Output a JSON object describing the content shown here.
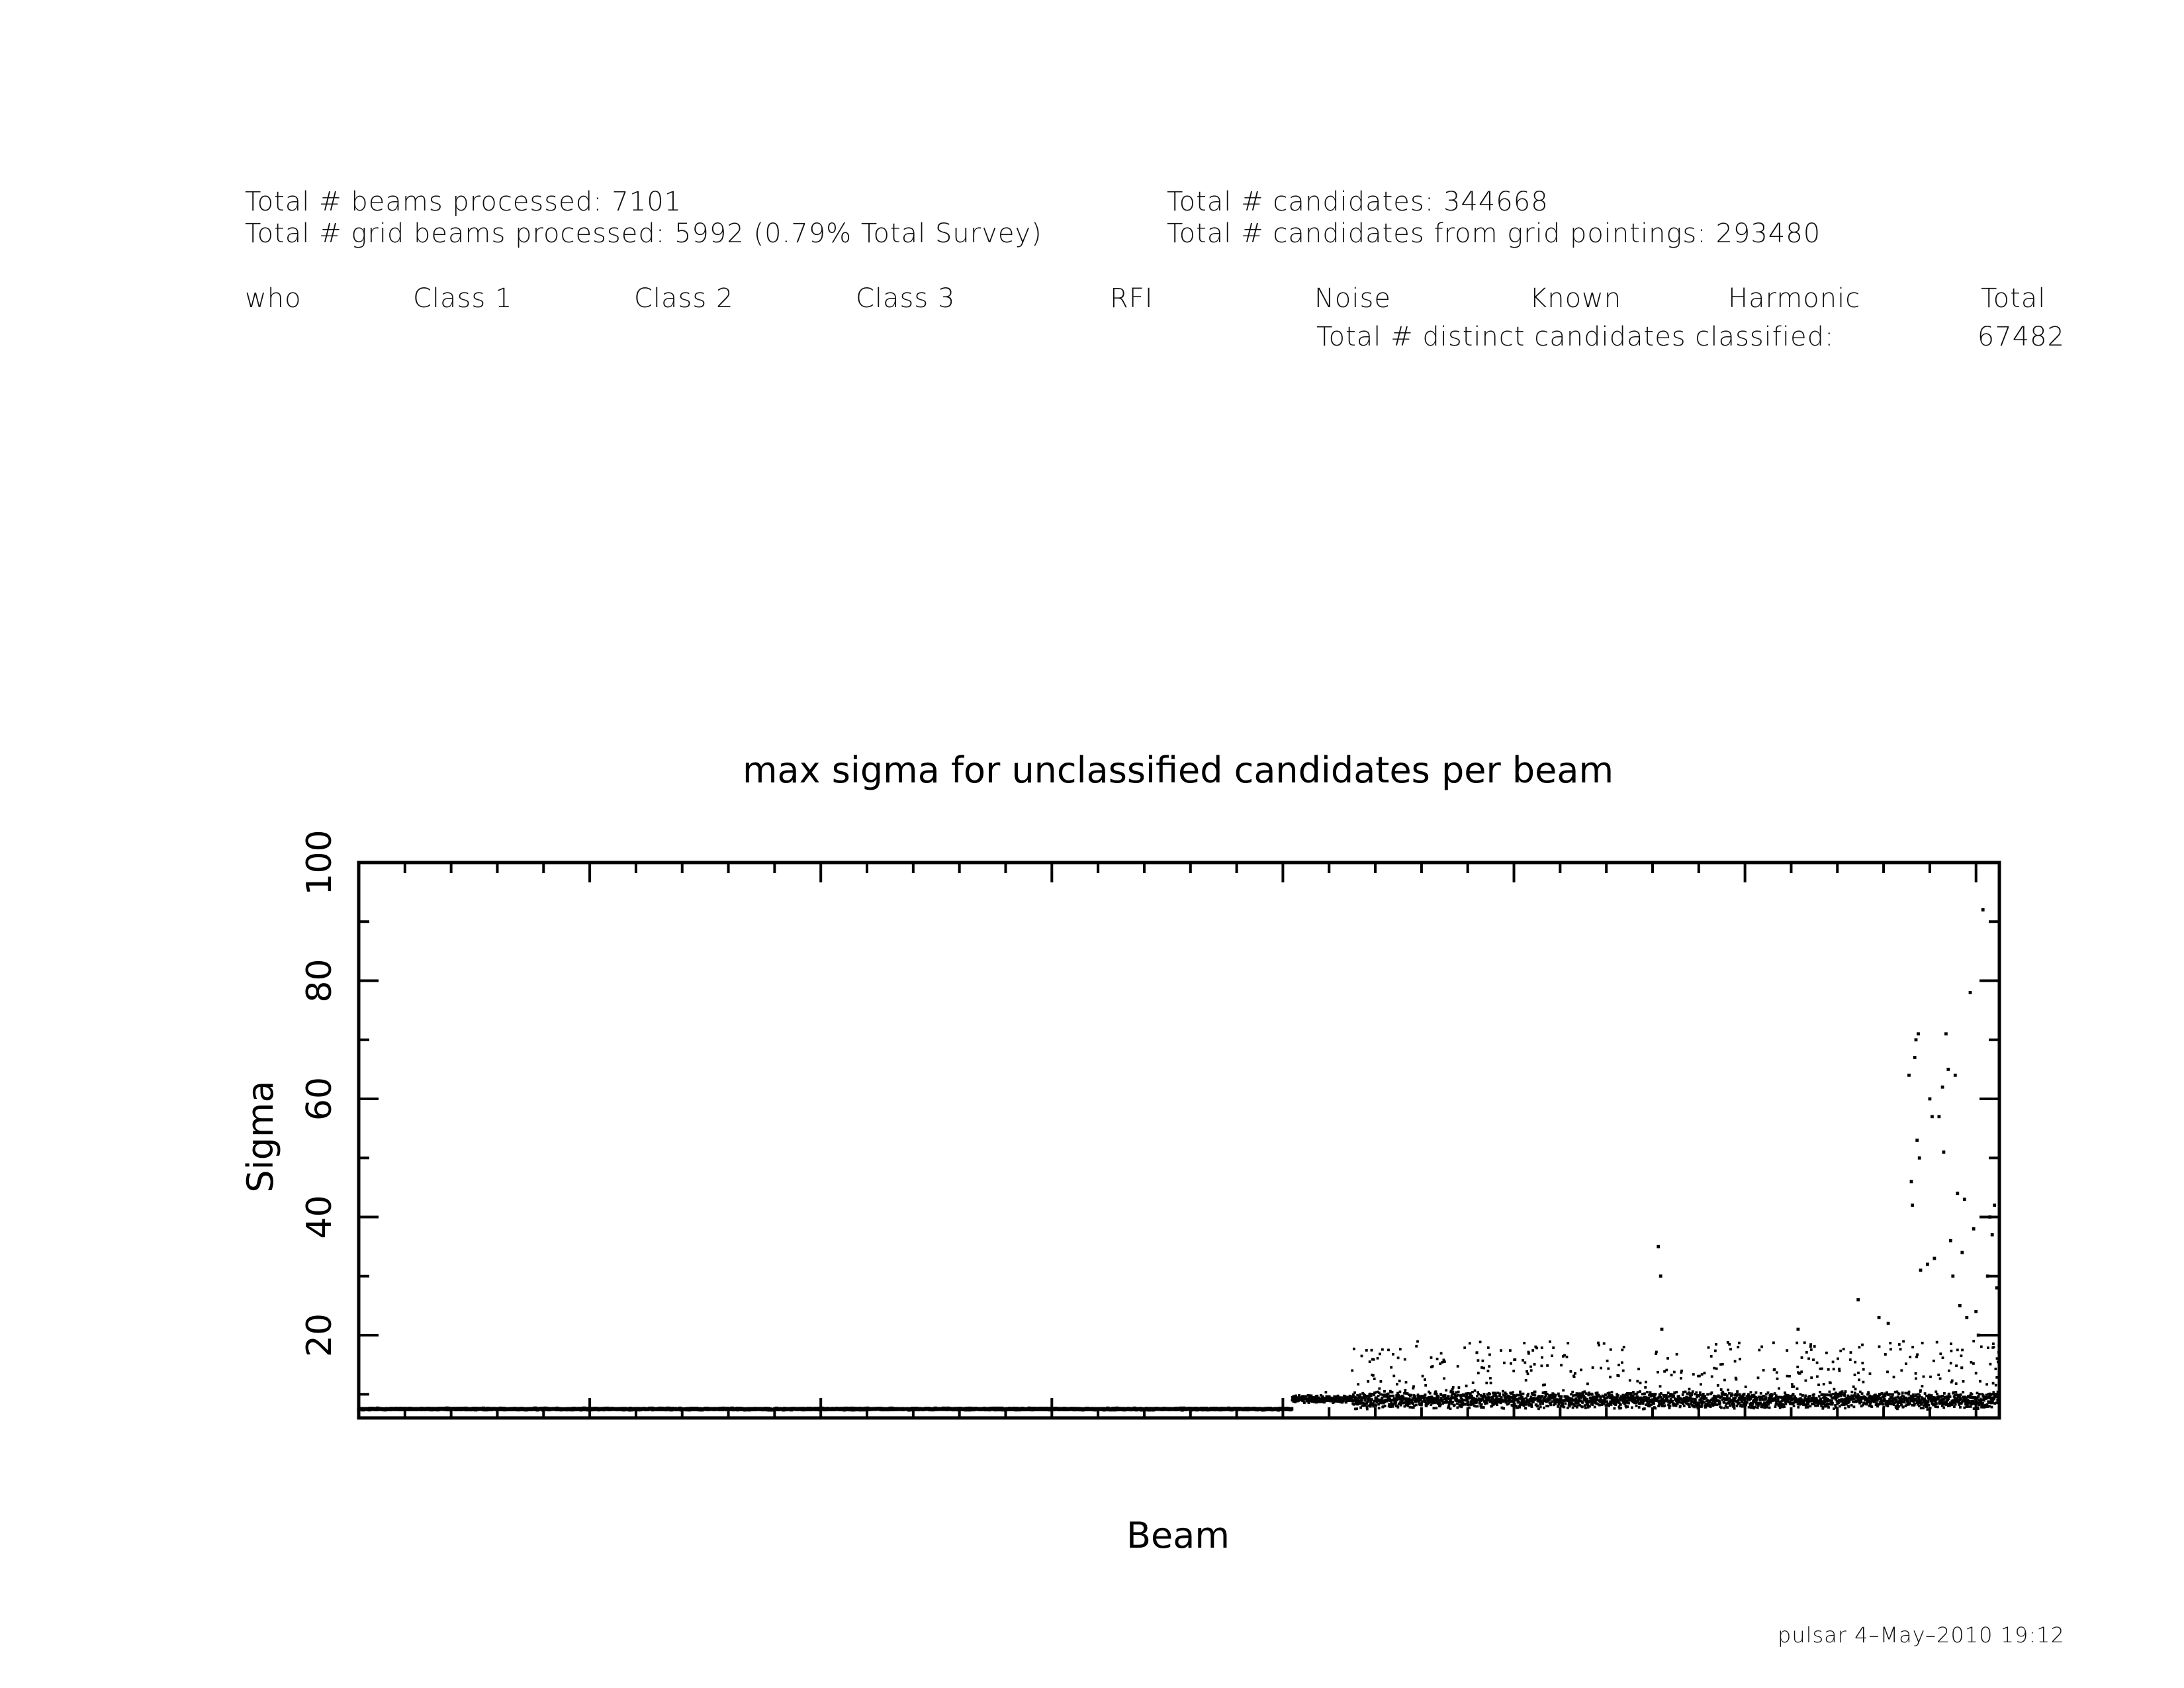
{
  "summary": {
    "beams_processed": "Total # beams processed: 7101",
    "grid_beams_processed": "Total # grid beams processed: 5992 (0.79% Total Survey)",
    "candidates": "Total # candidates: 344668",
    "candidates_grid": "Total # candidates from grid pointings: 293480"
  },
  "classification_table": {
    "headers": [
      "who",
      "Class 1",
      "Class 2",
      "Class 3",
      "RFI",
      "Noise",
      "Known",
      "Harmonic",
      "Total"
    ],
    "distinct_label": "Total # distinct candidates classified:",
    "distinct_value": "67482"
  },
  "chart_data": {
    "type": "scatter",
    "title": "max sigma for unclassified candidates per beam",
    "xlabel": "Beam",
    "ylabel": "Sigma",
    "xlim": [
      0,
      7101
    ],
    "ylim": [
      6,
      100
    ],
    "yticks": [
      20,
      40,
      60,
      80,
      100
    ],
    "x_tick_labels_shown": false,
    "segments": [
      {
        "x_range": [
          0,
          4040
        ],
        "baseline": 7.5,
        "jitter": 0.15,
        "spread_fraction": 0.0,
        "spread_max": 7.8
      },
      {
        "x_range": [
          4040,
          4300
        ],
        "baseline": 9.2,
        "jitter": 0.7,
        "spread_fraction": 0.02,
        "spread_max": 11
      },
      {
        "x_range": [
          4300,
          7101
        ],
        "baseline": 9.0,
        "jitter": 1.6,
        "spread_fraction": 0.12,
        "spread_max": 19
      }
    ],
    "outliers": [
      {
        "x": 5625,
        "y": 35
      },
      {
        "x": 5635,
        "y": 30
      },
      {
        "x": 5640,
        "y": 21
      },
      {
        "x": 6230,
        "y": 21
      },
      {
        "x": 6490,
        "y": 26
      },
      {
        "x": 6580,
        "y": 23
      },
      {
        "x": 6620,
        "y": 22
      },
      {
        "x": 6710,
        "y": 64
      },
      {
        "x": 6720,
        "y": 46
      },
      {
        "x": 6725,
        "y": 42
      },
      {
        "x": 6735,
        "y": 67
      },
      {
        "x": 6740,
        "y": 70
      },
      {
        "x": 6745,
        "y": 53
      },
      {
        "x": 6750,
        "y": 71
      },
      {
        "x": 6755,
        "y": 50
      },
      {
        "x": 6760,
        "y": 31
      },
      {
        "x": 6790,
        "y": 32
      },
      {
        "x": 6800,
        "y": 60
      },
      {
        "x": 6810,
        "y": 57
      },
      {
        "x": 6820,
        "y": 33
      },
      {
        "x": 6840,
        "y": 57
      },
      {
        "x": 6855,
        "y": 62
      },
      {
        "x": 6860,
        "y": 51
      },
      {
        "x": 6870,
        "y": 71
      },
      {
        "x": 6880,
        "y": 65
      },
      {
        "x": 6890,
        "y": 36
      },
      {
        "x": 6900,
        "y": 30
      },
      {
        "x": 6910,
        "y": 64
      },
      {
        "x": 6920,
        "y": 44
      },
      {
        "x": 6930,
        "y": 25
      },
      {
        "x": 6940,
        "y": 34
      },
      {
        "x": 6950,
        "y": 43
      },
      {
        "x": 6960,
        "y": 23
      },
      {
        "x": 6975,
        "y": 78
      },
      {
        "x": 6990,
        "y": 38
      },
      {
        "x": 7000,
        "y": 24
      },
      {
        "x": 7010,
        "y": 20
      },
      {
        "x": 7030,
        "y": 92
      },
      {
        "x": 7050,
        "y": 30
      },
      {
        "x": 7060,
        "y": 40
      },
      {
        "x": 7070,
        "y": 37
      },
      {
        "x": 7080,
        "y": 42
      },
      {
        "x": 7090,
        "y": 28
      }
    ]
  },
  "footer": {
    "stamp": "pulsar  4–May–2010 19:12"
  }
}
